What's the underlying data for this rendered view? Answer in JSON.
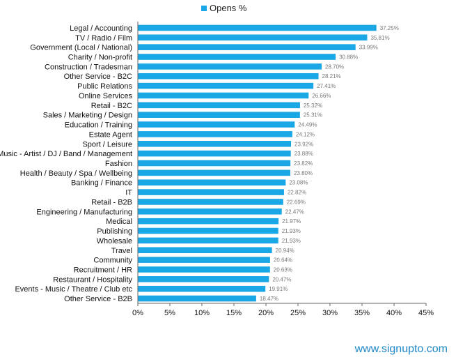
{
  "chart_data": {
    "type": "bar",
    "orientation": "horizontal",
    "legend": {
      "position": "top-center",
      "label": "Opens %"
    },
    "series": [
      {
        "name": "Opens %",
        "color": "#1aa7e6"
      }
    ],
    "categories": [
      "Legal / Accounting",
      "TV / Radio / Film",
      "Government (Local / National)",
      "Charity / Non-profit",
      "Construction / Tradesman",
      "Other Service - B2C",
      "Public Relations",
      "Online Services",
      "Retail - B2C",
      "Sales / Marketing / Design",
      "Education / Training",
      "Estate Agent",
      "Sport / Leisure",
      "Music - Artist / DJ / Band / Management",
      "Fashion",
      "Health / Beauty / Spa / Wellbeing",
      "Banking / Finance",
      "IT",
      "Retail - B2B",
      "Engineering / Manufacturing",
      "Medical",
      "Publishing",
      "Wholesale",
      "Travel",
      "Community",
      "Recruitment / HR",
      "Restaurant / Hospitality",
      "Events - Music / Theatre / Club etc",
      "Other Service - B2B"
    ],
    "values": [
      37.25,
      35.81,
      33.99,
      30.88,
      28.7,
      28.21,
      27.41,
      26.66,
      25.32,
      25.31,
      24.49,
      24.12,
      23.92,
      23.88,
      23.82,
      23.8,
      23.08,
      22.82,
      22.69,
      22.47,
      21.97,
      21.93,
      21.93,
      20.94,
      20.64,
      20.63,
      20.47,
      19.91,
      18.47
    ],
    "data_labels": [
      "37.25%",
      "35.81%",
      "33.99%",
      "30.88%",
      "28.70%",
      "28.21%",
      "27.41%",
      "26.66%",
      "25.32%",
      "25.31%",
      "24.49%",
      "24.12%",
      "23.92%",
      "23.88%",
      "23.82%",
      "23.80%",
      "23.08%",
      "22.82%",
      "22.69%",
      "22.47%",
      "21.97%",
      "21.93%",
      "21.93%",
      "20.94%",
      "20.64%",
      "20.63%",
      "20.47%",
      "19.91%",
      "18.47%"
    ],
    "xlim": [
      0,
      45
    ],
    "xticks": [
      0,
      5,
      10,
      15,
      20,
      25,
      30,
      35,
      40,
      45
    ],
    "xtick_labels": [
      "0%",
      "5%",
      "10%",
      "15%",
      "20%",
      "25%",
      "30%",
      "35%",
      "40%",
      "45%"
    ],
    "grid": false,
    "title": "",
    "xlabel": "",
    "ylabel": ""
  },
  "footer": {
    "watermark": "www.signupto.com"
  },
  "colors": {
    "bar": "#1aa7e6",
    "value_label": "#777777",
    "axis": "#666666"
  }
}
